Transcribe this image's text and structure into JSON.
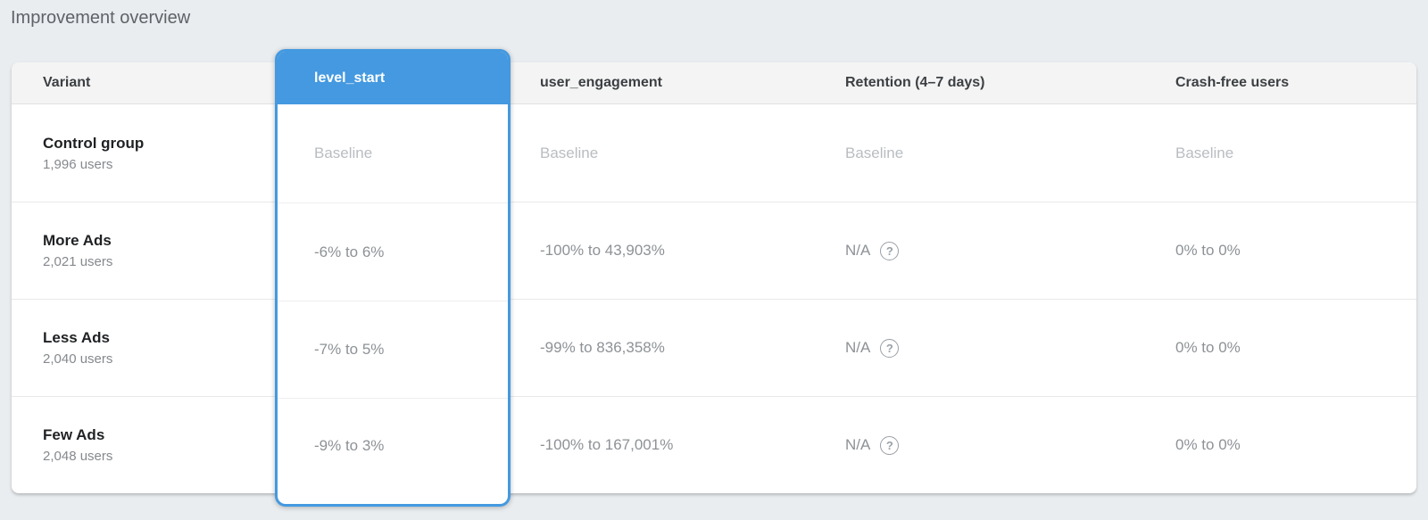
{
  "page_title": "Improvement overview",
  "colors": {
    "accent_blue": "#4499e0",
    "page_background": "#e9edf0",
    "header_background": "#f4f4f4",
    "baseline_text": "#b9bdc1",
    "value_text": "#8d9296"
  },
  "table": {
    "columns": [
      "Variant",
      "level_start",
      "user_engagement",
      "Retention (4–7 days)",
      "Crash-free users"
    ],
    "selected_metric": "level_start",
    "help_icon": "?",
    "rows": [
      {
        "variant": "Control group",
        "users": "1,996 users",
        "level_start": "Baseline",
        "user_engagement": "Baseline",
        "retention": "Baseline",
        "crash_free": "Baseline"
      },
      {
        "variant": "More Ads",
        "users": "2,021 users",
        "level_start": "-6% to 6%",
        "user_engagement": "-100% to 43,903%",
        "retention": "N/A",
        "crash_free": "0% to 0%"
      },
      {
        "variant": "Less Ads",
        "users": "2,040 users",
        "level_start": "-7% to 5%",
        "user_engagement": "-99% to 836,358%",
        "retention": "N/A",
        "crash_free": "0% to 0%"
      },
      {
        "variant": "Few Ads",
        "users": "2,048 users",
        "level_start": "-9% to 3%",
        "user_engagement": "-100% to 167,001%",
        "retention": "N/A",
        "crash_free": "0% to 0%"
      }
    ]
  }
}
